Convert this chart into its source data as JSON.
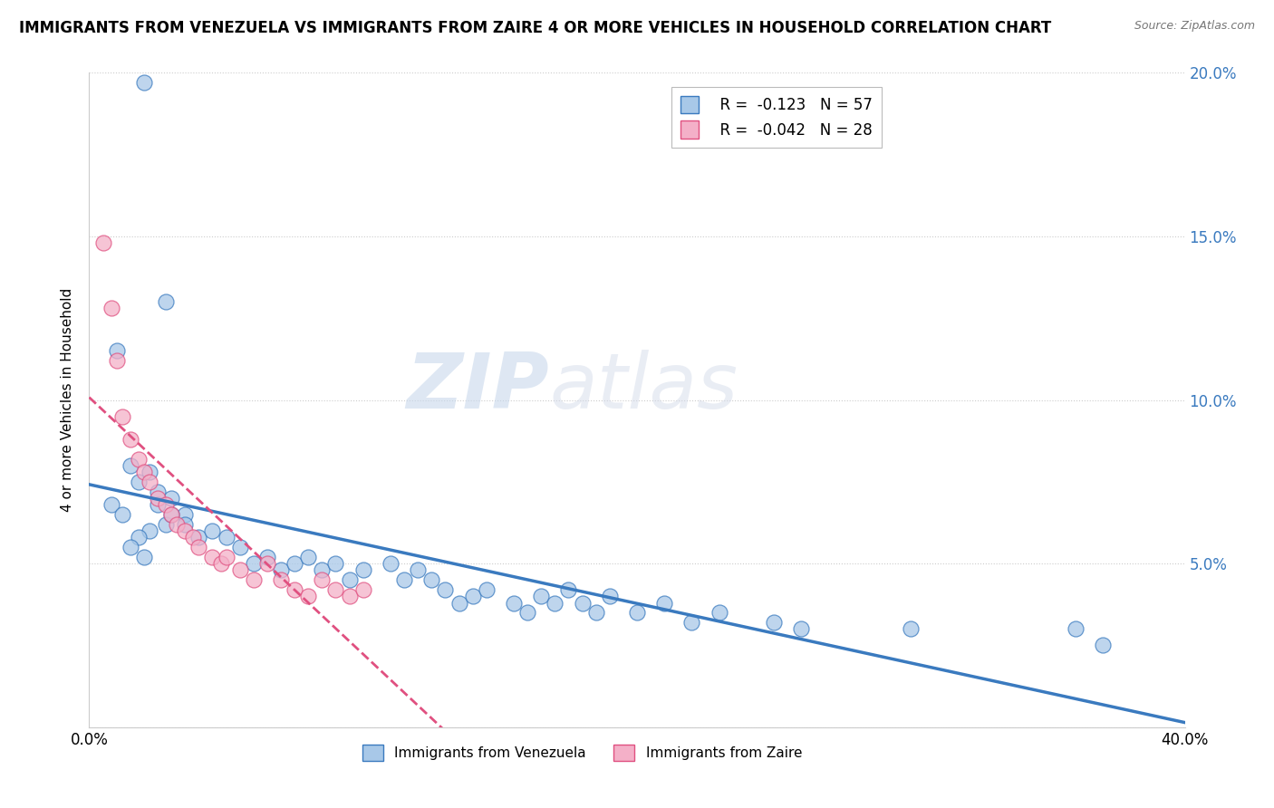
{
  "title": "IMMIGRANTS FROM VENEZUELA VS IMMIGRANTS FROM ZAIRE 4 OR MORE VEHICLES IN HOUSEHOLD CORRELATION CHART",
  "source": "Source: ZipAtlas.com",
  "ylabel": "4 or more Vehicles in Household",
  "xlim": [
    0.0,
    0.4
  ],
  "ylim": [
    0.0,
    0.2
  ],
  "x_ticks": [
    0.0,
    0.05,
    0.1,
    0.15,
    0.2,
    0.25,
    0.3,
    0.35,
    0.4
  ],
  "y_ticks": [
    0.0,
    0.05,
    0.1,
    0.15,
    0.2
  ],
  "legend_r1": "R =  -0.123",
  "legend_n1": "N = 57",
  "legend_r2": "R =  -0.042",
  "legend_n2": "N = 28",
  "color_venezuela": "#a8c8e8",
  "color_zaire": "#f4b0c8",
  "trendline_venezuela": "#3a7abf",
  "trendline_zaire": "#e05080",
  "watermark_zip": "ZIP",
  "watermark_atlas": "atlas",
  "venezuela_x": [
    0.02,
    0.028,
    0.01,
    0.015,
    0.018,
    0.022,
    0.025,
    0.008,
    0.012,
    0.03,
    0.035,
    0.025,
    0.028,
    0.022,
    0.018,
    0.015,
    0.02,
    0.03,
    0.035,
    0.04,
    0.045,
    0.05,
    0.055,
    0.06,
    0.065,
    0.07,
    0.075,
    0.08,
    0.085,
    0.09,
    0.095,
    0.1,
    0.11,
    0.115,
    0.12,
    0.125,
    0.13,
    0.135,
    0.14,
    0.145,
    0.155,
    0.16,
    0.165,
    0.17,
    0.175,
    0.18,
    0.185,
    0.19,
    0.2,
    0.21,
    0.22,
    0.23,
    0.25,
    0.26,
    0.3,
    0.36,
    0.37
  ],
  "venezuela_y": [
    0.197,
    0.13,
    0.115,
    0.08,
    0.075,
    0.078,
    0.072,
    0.068,
    0.065,
    0.07,
    0.065,
    0.068,
    0.062,
    0.06,
    0.058,
    0.055,
    0.052,
    0.065,
    0.062,
    0.058,
    0.06,
    0.058,
    0.055,
    0.05,
    0.052,
    0.048,
    0.05,
    0.052,
    0.048,
    0.05,
    0.045,
    0.048,
    0.05,
    0.045,
    0.048,
    0.045,
    0.042,
    0.038,
    0.04,
    0.042,
    0.038,
    0.035,
    0.04,
    0.038,
    0.042,
    0.038,
    0.035,
    0.04,
    0.035,
    0.038,
    0.032,
    0.035,
    0.032,
    0.03,
    0.03,
    0.03,
    0.025
  ],
  "zaire_x": [
    0.005,
    0.008,
    0.01,
    0.012,
    0.015,
    0.018,
    0.02,
    0.022,
    0.025,
    0.028,
    0.03,
    0.032,
    0.035,
    0.038,
    0.04,
    0.045,
    0.048,
    0.05,
    0.055,
    0.06,
    0.065,
    0.07,
    0.075,
    0.08,
    0.085,
    0.09,
    0.095,
    0.1
  ],
  "zaire_y": [
    0.148,
    0.128,
    0.112,
    0.095,
    0.088,
    0.082,
    0.078,
    0.075,
    0.07,
    0.068,
    0.065,
    0.062,
    0.06,
    0.058,
    0.055,
    0.052,
    0.05,
    0.052,
    0.048,
    0.045,
    0.05,
    0.045,
    0.042,
    0.04,
    0.045,
    0.042,
    0.04,
    0.042
  ]
}
